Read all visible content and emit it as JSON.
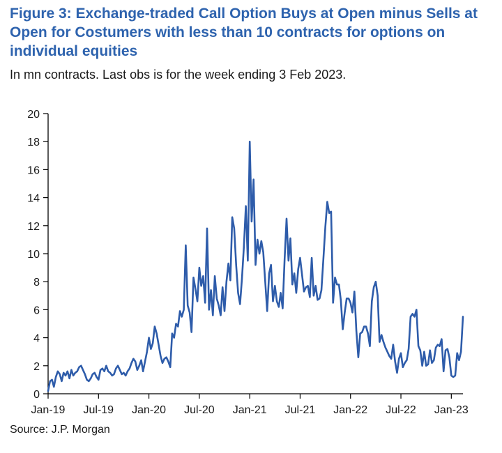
{
  "chart_data": {
    "type": "line",
    "title": "Figure 3: Exchange-traded Call Option Buys at Open minus Sells at Open for Costumers with less than 10 contracts for options on individual equities",
    "subtitle": "In mn contracts. Last obs is for the week ending 3 Feb 2023.",
    "source": "Source: J.P. Morgan",
    "xlabel": "",
    "ylabel": "",
    "ylim": [
      0,
      20
    ],
    "yticks": [
      0,
      2,
      4,
      6,
      8,
      10,
      12,
      14,
      16,
      18,
      20
    ],
    "xlim": [
      0,
      214
    ],
    "xtick_labels": [
      {
        "label": "Jan-19",
        "week": 0
      },
      {
        "label": "Jul-19",
        "week": 26
      },
      {
        "label": "Jan-20",
        "week": 52
      },
      {
        "label": "Jul-20",
        "week": 78
      },
      {
        "label": "Jan-21",
        "week": 104
      },
      {
        "label": "Jul-21",
        "week": 130
      },
      {
        "label": "Jan-22",
        "week": 156
      },
      {
        "label": "Jul-22",
        "week": 182
      },
      {
        "label": "Jan-23",
        "week": 208
      }
    ],
    "series": [
      {
        "name": "Call option buys at open minus sells at open",
        "color": "#2e5caa",
        "values": [
          0.2,
          0.9,
          1.0,
          0.5,
          1.2,
          1.6,
          1.4,
          0.9,
          1.5,
          1.3,
          1.6,
          1.1,
          1.7,
          1.3,
          1.5,
          1.6,
          1.9,
          2.0,
          1.7,
          1.4,
          1.0,
          0.9,
          1.1,
          1.4,
          1.5,
          1.2,
          1.0,
          1.7,
          1.8,
          1.6,
          2.0,
          1.6,
          1.5,
          1.3,
          1.4,
          1.8,
          2.0,
          1.7,
          1.4,
          1.5,
          1.3,
          1.6,
          1.8,
          2.2,
          2.5,
          2.3,
          1.7,
          2.0,
          2.4,
          1.6,
          2.3,
          3.0,
          4.0,
          3.2,
          3.6,
          4.8,
          4.3,
          3.5,
          2.7,
          2.2,
          2.5,
          2.6,
          2.3,
          1.9,
          4.3,
          4.0,
          5.0,
          4.8,
          5.9,
          5.5,
          6.0,
          10.6,
          6.3,
          5.8,
          4.4,
          8.3,
          7.5,
          6.6,
          9.0,
          7.7,
          8.4,
          6.5,
          11.8,
          6.0,
          7.4,
          5.6,
          8.4,
          6.8,
          6.3,
          5.6,
          7.6,
          5.9,
          8.0,
          9.3,
          8.1,
          12.6,
          11.8,
          9.2,
          7.2,
          6.4,
          8.2,
          10.5,
          13.4,
          9.5,
          18.0,
          12.3,
          15.3,
          9.2,
          11.0,
          10.0,
          10.9,
          10.1,
          8.0,
          5.9,
          8.6,
          9.2,
          6.6,
          7.7,
          6.6,
          6.2,
          7.2,
          6.1,
          9.6,
          12.5,
          9.5,
          11.1,
          7.8,
          8.6,
          7.2,
          8.9,
          9.7,
          8.5,
          7.3,
          7.6,
          7.7,
          6.9,
          9.7,
          7.0,
          7.7,
          6.7,
          6.8,
          7.4,
          9.6,
          11.9,
          13.7,
          12.9,
          13.0,
          6.5,
          8.3,
          7.8,
          7.8,
          6.7,
          4.6,
          5.8,
          6.8,
          6.8,
          6.5,
          5.8,
          7.3,
          4.5,
          2.6,
          4.3,
          4.4,
          4.8,
          4.8,
          4.3,
          3.4,
          6.6,
          7.6,
          8.0,
          7.0,
          3.7,
          4.2,
          3.7,
          3.3,
          3.0,
          2.7,
          2.5,
          3.5,
          2.3,
          1.5,
          2.5,
          2.9,
          1.9,
          2.2,
          2.4,
          3.2,
          5.5,
          5.7,
          5.5,
          6.0,
          3.4,
          3.1,
          2.0,
          3.0,
          2.0,
          2.1,
          3.1,
          2.2,
          2.4,
          3.3,
          3.5,
          3.4,
          3.9,
          1.6,
          3.1,
          3.2,
          2.6,
          1.3,
          1.2,
          1.3,
          2.9,
          2.4,
          3.0,
          5.5
        ]
      }
    ]
  }
}
